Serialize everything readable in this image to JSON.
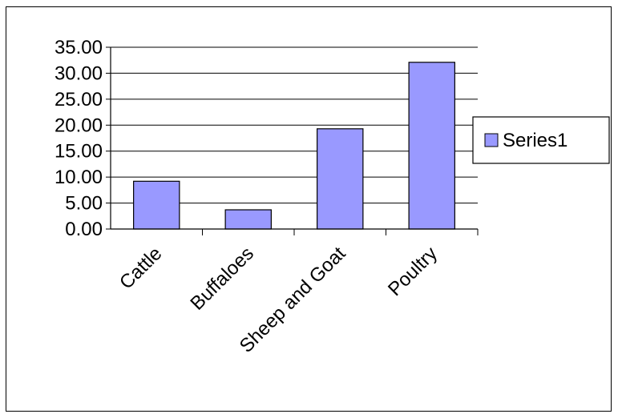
{
  "chart_data": {
    "type": "bar",
    "categories": [
      "Cattle",
      "Buffaloes",
      "Sheep and Goat",
      "Poultry"
    ],
    "series": [
      {
        "name": "Series1",
        "values": [
          9.2,
          3.7,
          19.3,
          32.1
        ],
        "color": "#9999ff"
      }
    ],
    "y_ticks": [
      "0.00",
      "5.00",
      "10.00",
      "15.00",
      "20.00",
      "25.00",
      "30.00",
      "35.00"
    ],
    "ylim": [
      0,
      35
    ],
    "grid": true,
    "legend": {
      "position": "right",
      "entries": [
        "Series1"
      ]
    },
    "title": "",
    "xlabel": "",
    "ylabel": ""
  }
}
